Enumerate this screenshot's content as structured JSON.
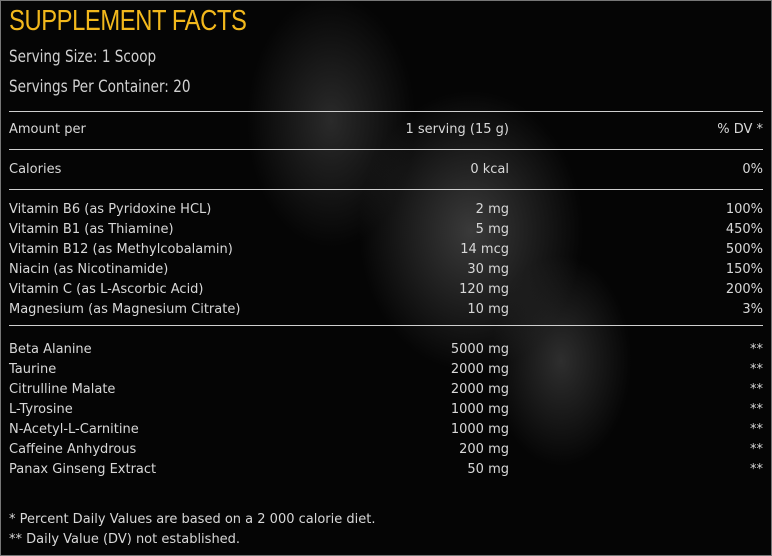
{
  "title": "SUPPLEMENT FACTS",
  "serving_size": "Serving Size: 1 Scoop",
  "servings_per_container": "Servings Per Container: 20",
  "accent_color": "#f2b81c",
  "header": {
    "col1": "Amount per",
    "col2": "1 serving (15 g)",
    "col3": "% DV *"
  },
  "calories": {
    "name": "Calories",
    "amount": "0 kcal",
    "dv": "0%"
  },
  "vitamins": [
    {
      "name": "Vitamin B6 (as Pyridoxine HCL)",
      "amount": "2 mg",
      "dv": "100%"
    },
    {
      "name": "Vitamin B1 (as Thiamine)",
      "amount": "5 mg",
      "dv": "450%"
    },
    {
      "name": "Vitamin B12 (as Methylcobalamin)",
      "amount": "14 mcg",
      "dv": "500%"
    },
    {
      "name": "Niacin (as Nicotinamide)",
      "amount": "30 mg",
      "dv": "150%"
    },
    {
      "name": "Vitamin C (as L-Ascorbic Acid)",
      "amount": "120 mg",
      "dv": "200%"
    },
    {
      "name": "Magnesium (as Magnesium Citrate)",
      "amount": "10 mg",
      "dv": "3%"
    }
  ],
  "others": [
    {
      "name": "Beta Alanine",
      "amount": "5000 mg",
      "dv": "**"
    },
    {
      "name": "Taurine",
      "amount": "2000 mg",
      "dv": "**"
    },
    {
      "name": "Citrulline Malate",
      "amount": "2000 mg",
      "dv": "**"
    },
    {
      "name": "L-Tyrosine",
      "amount": "1000 mg",
      "dv": "**"
    },
    {
      "name": "N-Acetyl-L-Carnitine",
      "amount": "1000 mg",
      "dv": "**"
    },
    {
      "name": "Caffeine Anhydrous",
      "amount": "200 mg",
      "dv": "**"
    },
    {
      "name": "Panax Ginseng Extract",
      "amount": "50 mg",
      "dv": "**"
    }
  ],
  "footnotes": [
    "* Percent Daily Values are based on a 2 000 calorie diet.",
    "** Daily Value (DV) not established."
  ]
}
